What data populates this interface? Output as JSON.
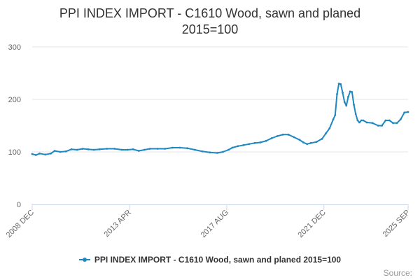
{
  "chart": {
    "title_line1": "PPI INDEX IMPORT - C1610 Wood, sawn and planed",
    "title_line2": "2015=100",
    "legend_label": "PPI INDEX IMPORT - C1610 Wood, sawn and planed 2015=100",
    "credits": "Source:"
  },
  "colors": {
    "series": "#1f87c1",
    "grid": "#e6e6e6",
    "axis": "#ccd6eb",
    "label": "#666666"
  },
  "chart_data": {
    "type": "line",
    "title": "PPI INDEX IMPORT - C1610 Wood, sawn and planed 2015=100",
    "xlabel": "",
    "ylabel": "",
    "ylim": [
      0,
      300
    ],
    "yticks": [
      0,
      100,
      200,
      300
    ],
    "xlim": [
      "2008-12",
      "2025-09"
    ],
    "xtick_labels": [
      "2008 DEC",
      "2013 APR",
      "2017 AUG",
      "2021 DEC",
      "2025 SEP"
    ],
    "xtick_dates": [
      "2008-12",
      "2013-04",
      "2017-08",
      "2021-12",
      "2025-09"
    ],
    "grid": true,
    "legend_position": "bottom",
    "series": [
      {
        "name": "PPI INDEX IMPORT - C1610 Wood, sawn and planed 2015=100",
        "points": [
          [
            "2008-12",
            96
          ],
          [
            "2009-02",
            94
          ],
          [
            "2009-04",
            97
          ],
          [
            "2009-07",
            95
          ],
          [
            "2009-10",
            97
          ],
          [
            "2009-12",
            102
          ],
          [
            "2010-03",
            100
          ],
          [
            "2010-06",
            101
          ],
          [
            "2010-09",
            105
          ],
          [
            "2010-12",
            104
          ],
          [
            "2011-03",
            106
          ],
          [
            "2011-06",
            105
          ],
          [
            "2011-09",
            104
          ],
          [
            "2011-12",
            105
          ],
          [
            "2012-04",
            106
          ],
          [
            "2012-08",
            106
          ],
          [
            "2012-12",
            104
          ],
          [
            "2013-03",
            104
          ],
          [
            "2013-06",
            105
          ],
          [
            "2013-09",
            102
          ],
          [
            "2013-12",
            104
          ],
          [
            "2014-03",
            106
          ],
          [
            "2014-07",
            106
          ],
          [
            "2014-11",
            106
          ],
          [
            "2015-03",
            108
          ],
          [
            "2015-07",
            108
          ],
          [
            "2015-11",
            107
          ],
          [
            "2016-03",
            104
          ],
          [
            "2016-07",
            101
          ],
          [
            "2016-11",
            99
          ],
          [
            "2017-03",
            98
          ],
          [
            "2017-06",
            100
          ],
          [
            "2017-09",
            104
          ],
          [
            "2017-11",
            108
          ],
          [
            "2018-02",
            111
          ],
          [
            "2018-05",
            113
          ],
          [
            "2018-08",
            115
          ],
          [
            "2018-11",
            117
          ],
          [
            "2019-02",
            118
          ],
          [
            "2019-05",
            121
          ],
          [
            "2019-08",
            126
          ],
          [
            "2019-11",
            130
          ],
          [
            "2020-02",
            133
          ],
          [
            "2020-05",
            133
          ],
          [
            "2020-08",
            128
          ],
          [
            "2020-11",
            123
          ],
          [
            "2021-01",
            118
          ],
          [
            "2021-03",
            115
          ],
          [
            "2021-05",
            117
          ],
          [
            "2021-08",
            119
          ],
          [
            "2021-11",
            125
          ],
          [
            "2022-01",
            135
          ],
          [
            "2022-03",
            145
          ],
          [
            "2022-05",
            162
          ],
          [
            "2022-06",
            170
          ],
          [
            "2022-07",
            210
          ],
          [
            "2022-08",
            230
          ],
          [
            "2022-09",
            229
          ],
          [
            "2022-10",
            213
          ],
          [
            "2022-11",
            195
          ],
          [
            "2022-12",
            188
          ],
          [
            "2023-01",
            205
          ],
          [
            "2023-02",
            215
          ],
          [
            "2023-03",
            214
          ],
          [
            "2023-04",
            190
          ],
          [
            "2023-05",
            172
          ],
          [
            "2023-06",
            160
          ],
          [
            "2023-07",
            156
          ],
          [
            "2023-08",
            160
          ],
          [
            "2023-09",
            160
          ],
          [
            "2023-11",
            156
          ],
          [
            "2024-02",
            155
          ],
          [
            "2024-05",
            150
          ],
          [
            "2024-07",
            150
          ],
          [
            "2024-09",
            160
          ],
          [
            "2024-11",
            160
          ],
          [
            "2025-01",
            155
          ],
          [
            "2025-03",
            155
          ],
          [
            "2025-05",
            162
          ],
          [
            "2025-07",
            175
          ],
          [
            "2025-09",
            176
          ]
        ]
      }
    ]
  }
}
